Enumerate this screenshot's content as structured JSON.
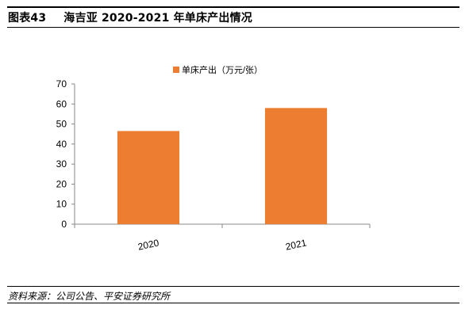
{
  "figure": {
    "label": "图表43",
    "title": "海吉亚 2020-2021 年单床产出情况",
    "source": "资料来源：公司公告、平安证券研究所"
  },
  "colors": {
    "bar": "#ED7D31",
    "axis": "#888888"
  },
  "chart_data": {
    "type": "bar",
    "categories": [
      "2020",
      "2021"
    ],
    "series": [
      {
        "name": "单床产出（万元/张）",
        "values": [
          46.5,
          58.0
        ]
      }
    ],
    "ylim": [
      0,
      70
    ],
    "yticks": [
      0,
      10,
      20,
      30,
      40,
      50,
      60,
      70
    ],
    "legend_position": "top",
    "grid": false
  }
}
